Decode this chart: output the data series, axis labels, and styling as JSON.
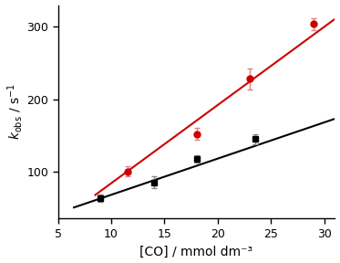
{
  "title": "",
  "xlabel": "[CO] / mmol dm⁻³",
  "ylabel": "$k_{\\mathrm{obs}}$ / s$^{-1}$",
  "xlim": [
    5,
    31
  ],
  "ylim": [
    35,
    330
  ],
  "xticks": [
    5,
    10,
    15,
    20,
    25,
    30
  ],
  "yticks": [
    100,
    200,
    300
  ],
  "red_x": [
    11.5,
    18.0,
    23.0,
    29.0
  ],
  "red_y": [
    100,
    152,
    228,
    304
  ],
  "red_yerr": [
    7,
    8,
    14,
    8
  ],
  "red_color": "#cc0000",
  "red_ecolor": "#e08080",
  "red_marker": "o",
  "red_markersize": 5,
  "black_x": [
    9.0,
    14.0,
    18.0,
    23.5
  ],
  "black_y": [
    63,
    85,
    117,
    145
  ],
  "black_yerr": [
    5,
    8,
    5,
    7
  ],
  "black_color": "#000000",
  "black_ecolor": "#888888",
  "black_marker": "s",
  "black_markersize": 5,
  "red_fit_x": [
    8.5,
    31.0
  ],
  "red_fit_slope": 10.8,
  "red_fit_intercept": -24.0,
  "black_fit_x": [
    6.5,
    31.0
  ],
  "black_fit_slope": 5.0,
  "black_fit_intercept": 18.0,
  "background_color": "#ffffff",
  "figure_size": [
    3.73,
    2.88
  ],
  "dpi": 100
}
